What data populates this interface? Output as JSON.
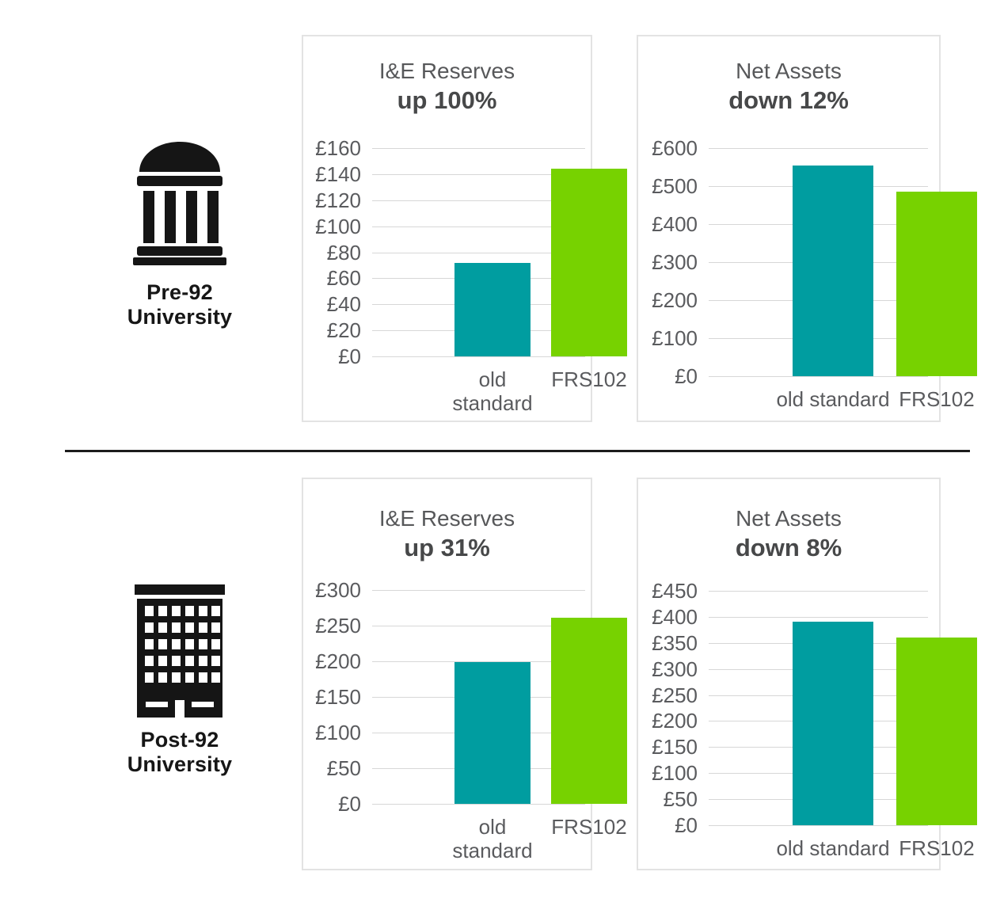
{
  "groups": [
    {
      "icon": "classical-building-icon",
      "label_line1": "Pre-92",
      "label_line2": "University"
    },
    {
      "icon": "office-building-icon",
      "label_line1": "Post-92",
      "label_line2": "University"
    }
  ],
  "colors": {
    "teal": "#009DA0",
    "green": "#77D200",
    "grid": "#D7D7D7",
    "title": "#57585A",
    "subtitle": "#474849",
    "tick": "#5A5B5E",
    "divider": "#1C1C1C",
    "panel_border": "#E3E3E3",
    "icon": "#151515"
  },
  "chart_data": [
    {
      "group": "Pre-92 University",
      "type": "bar",
      "title": "I&E Reserves",
      "subtitle": "up 100%",
      "categories": [
        "old standard",
        "FRS102"
      ],
      "values": [
        72,
        144
      ],
      "ylim": [
        0,
        160
      ],
      "ystep": 20,
      "yticks": [
        "£160",
        "£140",
        "£120",
        "£100",
        "£80",
        "£60",
        "£40",
        "£20",
        "£0"
      ],
      "series_colors": [
        "#009DA0",
        "#77D200"
      ],
      "grid": true,
      "legend": null,
      "xlabel": "",
      "ylabel": ""
    },
    {
      "group": "Pre-92 University",
      "type": "bar",
      "title": "Net Assets",
      "subtitle": "down 12%",
      "categories": [
        "old standard",
        "FRS102"
      ],
      "values": [
        555,
        485
      ],
      "ylim": [
        0,
        600
      ],
      "ystep": 100,
      "yticks": [
        "£600",
        "£500",
        "£400",
        "£300",
        "£200",
        "£100",
        "£0"
      ],
      "series_colors": [
        "#009DA0",
        "#77D200"
      ],
      "grid": true,
      "legend": null,
      "xlabel": "",
      "ylabel": ""
    },
    {
      "group": "Post-92 University",
      "type": "bar",
      "title": "I&E Reserves",
      "subtitle": "up 31%",
      "categories": [
        "old standard",
        "FRS102"
      ],
      "values": [
        199,
        261
      ],
      "ylim": [
        0,
        300
      ],
      "ystep": 50,
      "yticks": [
        "£300",
        "£250",
        "£200",
        "£150",
        "£100",
        "£50",
        "£0"
      ],
      "series_colors": [
        "#009DA0",
        "#77D200"
      ],
      "grid": true,
      "legend": null,
      "xlabel": "",
      "ylabel": ""
    },
    {
      "group": "Post-92 University",
      "type": "bar",
      "title": "Net Assets",
      "subtitle": "down 8%",
      "categories": [
        "old standard",
        "FRS102"
      ],
      "values": [
        390,
        360
      ],
      "ylim": [
        0,
        450
      ],
      "ystep": 50,
      "yticks": [
        "£450",
        "£400",
        "£350",
        "£300",
        "£250",
        "£200",
        "£150",
        "£100",
        "£50",
        "£0"
      ],
      "series_colors": [
        "#009DA0",
        "#77D200"
      ],
      "grid": true,
      "legend": null,
      "xlabel": "",
      "ylabel": ""
    }
  ]
}
